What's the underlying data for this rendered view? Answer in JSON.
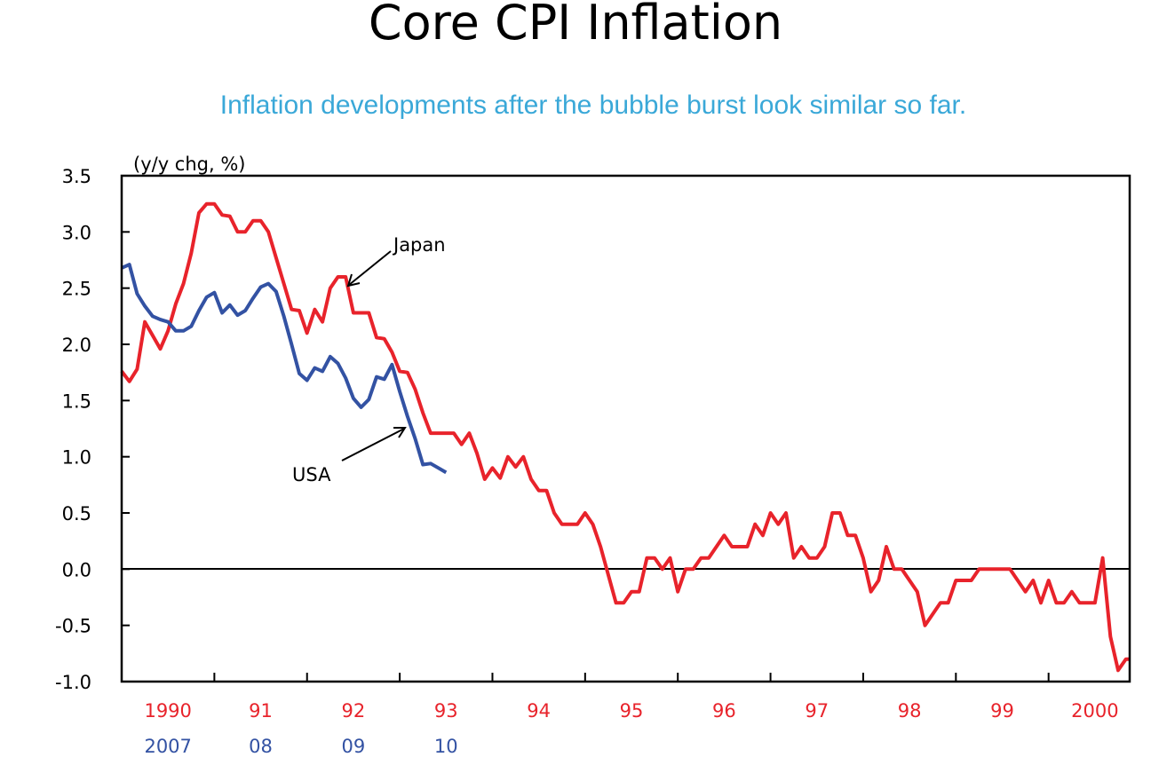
{
  "title": "Core CPI Inflation",
  "subtitle": "Inflation developments after the bubble burst look similar so far.",
  "chart_data": {
    "type": "line",
    "title": "Core CPI Inflation",
    "subtitle": "Inflation developments after the bubble burst look similar so far.",
    "ylabel": "(y/y chg, %)",
    "ylim": [
      -1.0,
      3.5
    ],
    "yticks": [
      "3.5",
      "3.0",
      "2.5",
      "2.0",
      "1.5",
      "1.0",
      "0.5",
      "0.0",
      "-0.5",
      "-1.0"
    ],
    "xticks_japan": [
      "1990",
      "91",
      "92",
      "93",
      "94",
      "95",
      "96",
      "97",
      "98",
      "99",
      "2000"
    ],
    "xticks_usa": [
      "2007",
      "08",
      "09",
      "10"
    ],
    "x_frequency": "monthly",
    "x_start_japan": "1990-01",
    "x_start_usa": "2007-01",
    "zero_line": true,
    "grid": false,
    "colors": {
      "japan": "#e8232b",
      "usa": "#3352a3",
      "japan_ticks": "#e8232b",
      "usa_ticks": "#3352a3"
    },
    "series": [
      {
        "name": "Japan",
        "color": "#e8232b",
        "values": [
          1.76,
          1.67,
          1.78,
          2.2,
          2.08,
          1.96,
          2.12,
          2.36,
          2.54,
          2.81,
          3.17,
          3.25,
          3.25,
          3.15,
          3.14,
          3.0,
          3.0,
          3.1,
          3.1,
          3.0,
          2.77,
          2.54,
          2.31,
          2.3,
          2.1,
          2.31,
          2.2,
          2.5,
          2.6,
          2.6,
          2.28,
          2.28,
          2.28,
          2.06,
          2.05,
          1.93,
          1.76,
          1.75,
          1.6,
          1.39,
          1.21,
          1.21,
          1.21,
          1.21,
          1.11,
          1.21,
          1.03,
          0.8,
          0.9,
          0.81,
          1.0,
          0.91,
          1.0,
          0.8,
          0.7,
          0.7,
          0.5,
          0.4,
          0.4,
          0.4,
          0.5,
          0.4,
          0.2,
          -0.05,
          -0.3,
          -0.3,
          -0.2,
          -0.2,
          0.1,
          0.1,
          0.0,
          0.1,
          -0.2,
          0.0,
          0.0,
          0.1,
          0.1,
          0.2,
          0.3,
          0.2,
          0.2,
          0.2,
          0.4,
          0.3,
          0.5,
          0.4,
          0.5,
          0.1,
          0.2,
          0.1,
          0.1,
          0.2,
          0.5,
          0.5,
          0.3,
          0.3,
          0.1,
          -0.2,
          -0.1,
          0.2,
          0.0,
          0.0,
          -0.1,
          -0.2,
          -0.5,
          -0.4,
          -0.3,
          -0.3,
          -0.1,
          -0.1,
          -0.1,
          0.0,
          0.0,
          0.0,
          0.0,
          0.0,
          -0.1,
          -0.2,
          -0.1,
          -0.3,
          -0.1,
          -0.3,
          -0.3,
          -0.2,
          -0.3,
          -0.3,
          -0.3,
          0.1,
          -0.6,
          -0.9,
          -0.8,
          -0.8
        ]
      },
      {
        "name": "USA",
        "color": "#3352a3",
        "values": [
          2.68,
          2.71,
          2.45,
          2.34,
          2.25,
          2.22,
          2.2,
          2.12,
          2.12,
          2.16,
          2.3,
          2.42,
          2.46,
          2.28,
          2.35,
          2.26,
          2.3,
          2.41,
          2.51,
          2.54,
          2.47,
          2.25,
          2.0,
          1.74,
          1.68,
          1.79,
          1.76,
          1.89,
          1.83,
          1.7,
          1.52,
          1.44,
          1.51,
          1.71,
          1.69,
          1.82,
          1.58,
          1.36,
          1.16,
          0.93,
          0.94,
          0.9,
          0.86
        ]
      }
    ],
    "annotations": [
      "Japan",
      "USA"
    ]
  }
}
